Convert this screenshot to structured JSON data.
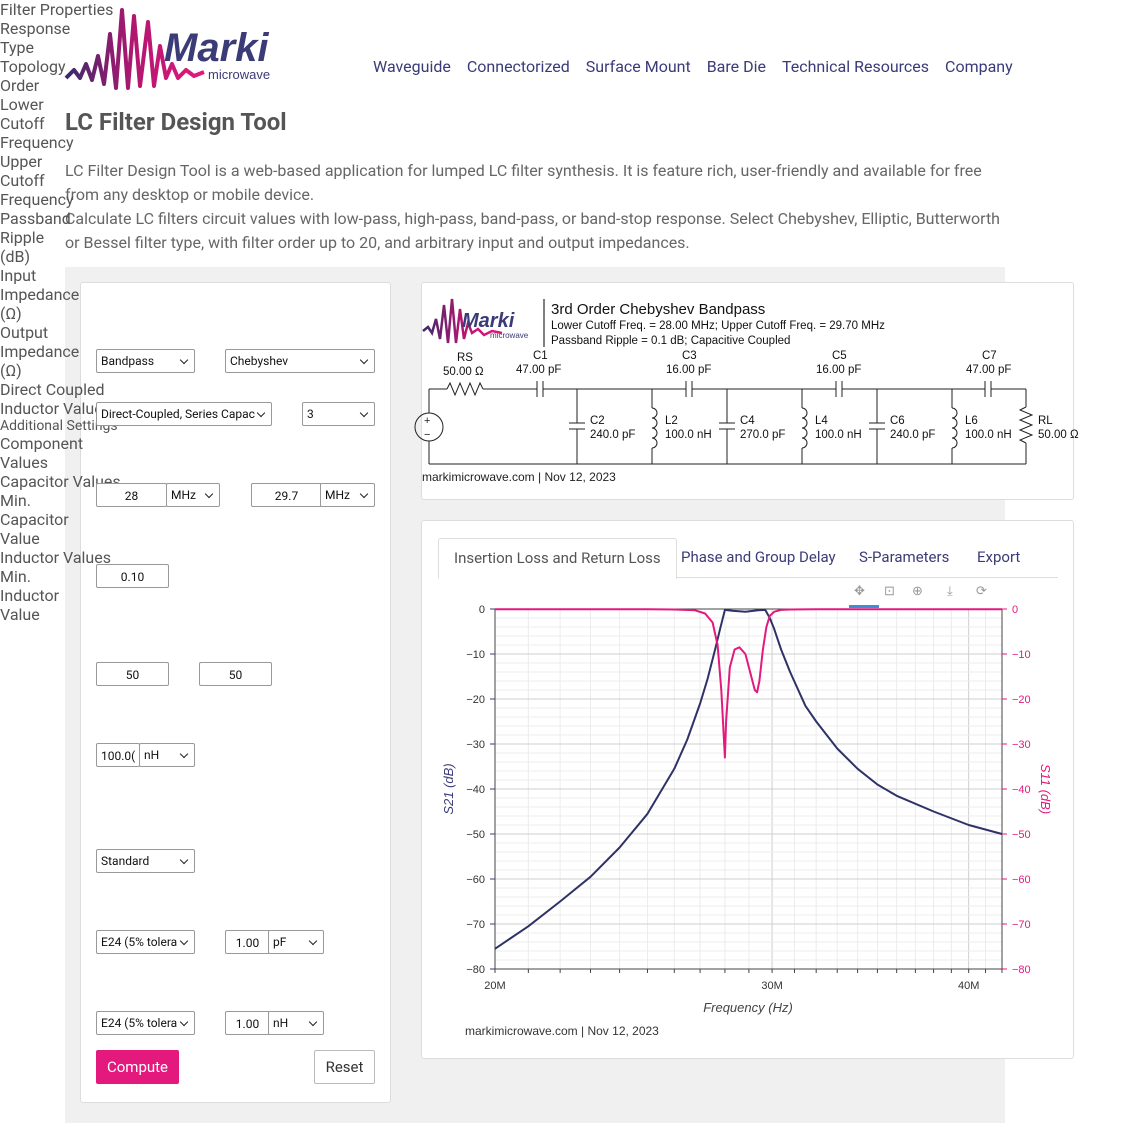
{
  "brand": {
    "name": "Marki",
    "sub": "microwave",
    "accent": "#e3197d",
    "navy": "#3a3b77"
  },
  "nav": [
    "Waveguide",
    "Connectorized",
    "Surface Mount",
    "Bare Die",
    "Technical Resources",
    "Company"
  ],
  "page": {
    "title": "LC Filter Design Tool",
    "intro1": "LC Filter Design Tool is a web-based application for lumped LC filter synthesis. It is feature rich, user-friendly and available for free from any desktop or mobile device.",
    "intro2": "Calculate LC filters circuit values with low-pass, high-pass, band-pass, or band-stop response. Select Chebyshev, Elliptic, Butterworth or Bessel filter type, with filter order up to 20, and arbitrary input and output impedances."
  },
  "form": {
    "section1": "Filter Properties",
    "response_label": "Response",
    "response_value": "Bandpass",
    "type_label": "Type",
    "type_value": "Chebyshev",
    "topology_label": "Topology",
    "topology_value": "Direct-Coupled, Series Capac",
    "order_label": "Order",
    "order_value": "3",
    "lower_label": "Lower Cutoff Frequency",
    "lower_value": "28",
    "lower_unit": "MHz",
    "upper_label": "Upper Cutoff Frequency",
    "upper_value": "29.7",
    "upper_unit": "MHz",
    "ripple_label": "Passband Ripple (dB)",
    "ripple_value": "0.10",
    "input_label": "Input Impedance (Ω)",
    "input_value": "50",
    "output_label": "Output Impedance (Ω)",
    "output_value": "50",
    "dci_label": "Direct Coupled Inductor Value",
    "dci_value": "100.0(",
    "dci_unit": "nH",
    "section2": "Additional Settings",
    "comp_label": "Component Values",
    "comp_value": "Standard",
    "cap_label": "Capacitor Values",
    "cap_value": "E24 (5% tolera",
    "mincap_label": "Min. Capacitor Value",
    "mincap_value": "1.00",
    "mincap_unit": "pF",
    "ind_label": "Inductor Values",
    "ind_value": "E24 (5% tolera",
    "minind_label": "Min. Inductor Value",
    "minind_value": "1.00",
    "minind_unit": "nH",
    "compute": "Compute",
    "reset": "Reset"
  },
  "schematic": {
    "title": "3rd Order Chebyshev Bandpass",
    "line1": "Lower Cutoff Freq. = 28.00 MHz; Upper Cutoff Freq. = 29.70 MHz",
    "line2": "Passband Ripple = 0.1 dB; Capacitive Coupled",
    "footer": "markimicrowave.com | Nov 12, 2023",
    "rs_name": "RS",
    "rs_val": "50.00 Ω",
    "rl_name": "RL",
    "rl_val": "50.00 Ω",
    "series": [
      {
        "name": "C1",
        "val": "47.00 pF"
      },
      {
        "name": "C3",
        "val": "16.00 pF"
      },
      {
        "name": "C5",
        "val": "16.00 pF"
      },
      {
        "name": "C7",
        "val": "47.00 pF"
      }
    ],
    "shunt": [
      {
        "name": "C2",
        "val": "240.0 pF"
      },
      {
        "name": "L2",
        "val": "100.0 nH"
      },
      {
        "name": "C4",
        "val": "270.0 pF"
      },
      {
        "name": "L4",
        "val": "100.0 nH"
      },
      {
        "name": "C6",
        "val": "240.0 pF"
      },
      {
        "name": "L6",
        "val": "100.0 nH"
      }
    ]
  },
  "tabs": [
    "Insertion Loss and Return Loss",
    "Phase and Group Delay",
    "S-Parameters",
    "Export"
  ],
  "chart_footer": "markimicrowave.com | Nov 12, 2023",
  "chart_data": {
    "type": "line",
    "xlabel": "Frequency (Hz)",
    "ylabel": "S21 (dB)",
    "y2label": "S11 (dB)",
    "x_scale": "log",
    "xlim": [
      20000000,
      42000000
    ],
    "ylim": [
      -80,
      0
    ],
    "y2lim": [
      -80,
      0
    ],
    "x_ticks": [
      "20M",
      "30M",
      "40M"
    ],
    "y_ticks": [
      0,
      -10,
      -20,
      -30,
      -40,
      -50,
      -60,
      -70,
      -80
    ],
    "grid": true,
    "series": [
      {
        "name": "S21",
        "color": "#2e3266",
        "x": [
          20,
          21,
          22,
          23,
          24,
          25,
          26,
          26.5,
          27,
          27.3,
          27.6,
          27.8,
          28,
          28.3,
          28.85,
          29.4,
          29.7,
          29.9,
          30.1,
          30.4,
          30.8,
          31.5,
          32,
          33,
          34,
          35,
          36,
          38,
          40,
          42
        ],
        "values": [
          -75.5,
          -70.5,
          -65,
          -59.5,
          -53,
          -45.5,
          -35.5,
          -29,
          -21,
          -15.5,
          -9,
          -4.5,
          -0.2,
          -0.4,
          -0.6,
          -0.3,
          -0.2,
          -2,
          -4.5,
          -9,
          -14,
          -21.5,
          -25,
          -31,
          -35.5,
          -39,
          -41.5,
          -45,
          -48,
          -50
        ]
      },
      {
        "name": "S11",
        "color": "#e3197d",
        "x": [
          20,
          25,
          26,
          26.8,
          27.2,
          27.5,
          27.7,
          27.85,
          27.95,
          28.0,
          28.05,
          28.2,
          28.4,
          28.6,
          28.85,
          29.05,
          29.25,
          29.35,
          29.45,
          29.6,
          29.75,
          29.9,
          30.1,
          30.4,
          30.8,
          32,
          42
        ],
        "values": [
          -0.05,
          -0.05,
          -0.1,
          -0.3,
          -1,
          -3,
          -8,
          -18,
          -28,
          -33,
          -25,
          -13,
          -9,
          -8.5,
          -10,
          -14,
          -18,
          -18.5,
          -16,
          -9,
          -4,
          -1.5,
          -0.6,
          -0.2,
          -0.1,
          -0.05,
          -0.05
        ]
      }
    ]
  }
}
